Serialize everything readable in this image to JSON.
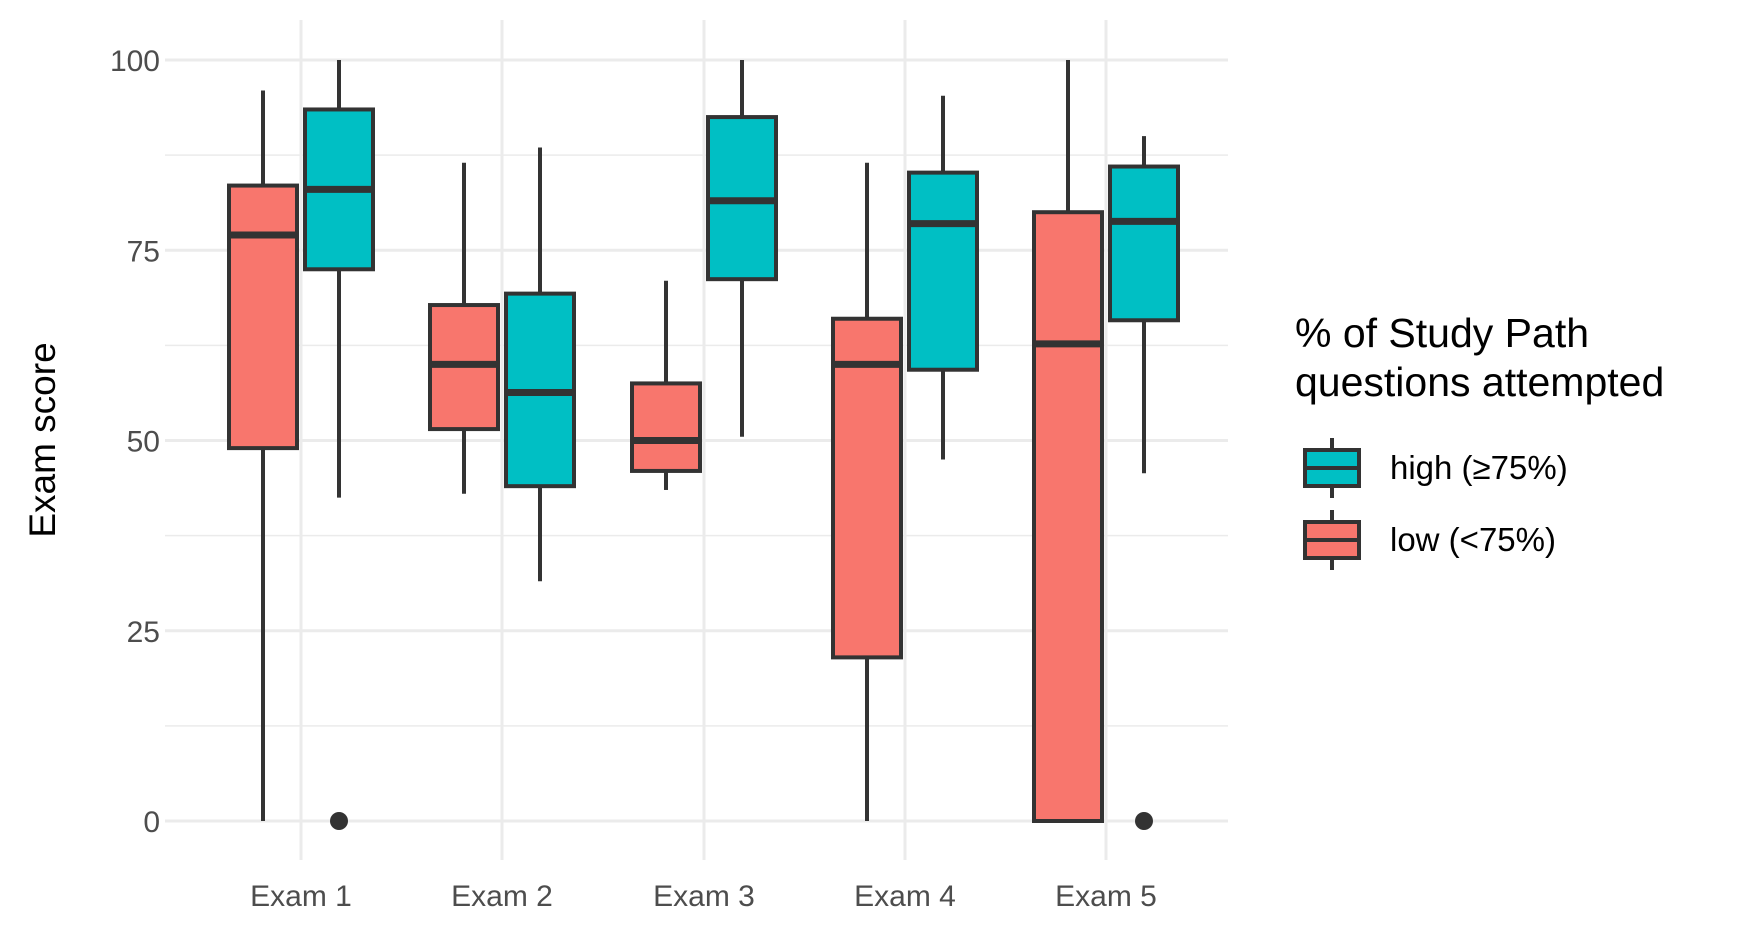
{
  "chart_data": {
    "type": "boxplot",
    "title": "",
    "xlabel": "",
    "ylabel": "Exam score",
    "ylim": [
      -4,
      104
    ],
    "yticks": [
      0,
      25,
      50,
      75,
      100
    ],
    "grid": true,
    "legend_position": "right",
    "legend_title": [
      "% of Study Path",
      "questions attempted"
    ],
    "categories": [
      "Exam 1",
      "Exam 2",
      "Exam 3",
      "Exam 4",
      "Exam 5"
    ],
    "colors": {
      "low": "#F8766D",
      "high": "#00BFC4",
      "outline": "#333333"
    },
    "series": [
      {
        "key": "low",
        "name": "low (<75%)",
        "boxes": [
          {
            "lower": 0,
            "q1": 49,
            "median": 77,
            "q3": 83.5,
            "upper": 96,
            "outliers": []
          },
          {
            "lower": 43,
            "q1": 51.5,
            "median": 60,
            "q3": 67.8,
            "upper": 86.5,
            "outliers": []
          },
          {
            "lower": 43.5,
            "q1": 46,
            "median": 50,
            "q3": 57.5,
            "upper": 71,
            "outliers": []
          },
          {
            "lower": 0,
            "q1": 21.5,
            "median": 60,
            "q3": 66,
            "upper": 86.5,
            "outliers": []
          },
          {
            "lower": 0,
            "q1": 0,
            "median": 62.7,
            "q3": 80,
            "upper": 100,
            "outliers": []
          }
        ]
      },
      {
        "key": "high",
        "name": "high (≥75%)",
        "boxes": [
          {
            "lower": 42.5,
            "q1": 72.5,
            "median": 83,
            "q3": 93.5,
            "upper": 100,
            "outliers": [
              0
            ]
          },
          {
            "lower": 31.5,
            "q1": 44,
            "median": 56.3,
            "q3": 69.3,
            "upper": 88.5,
            "outliers": []
          },
          {
            "lower": 50.5,
            "q1": 71.2,
            "median": 81.5,
            "q3": 92.5,
            "upper": 100,
            "outliers": []
          },
          {
            "lower": 47.5,
            "q1": 59.3,
            "median": 78.5,
            "q3": 85.2,
            "upper": 95.3,
            "outliers": []
          },
          {
            "lower": 45.7,
            "q1": 65.8,
            "median": 78.8,
            "q3": 86,
            "upper": 90,
            "outliers": [
              0
            ]
          }
        ]
      }
    ],
    "legend_order": [
      "high",
      "low"
    ]
  }
}
